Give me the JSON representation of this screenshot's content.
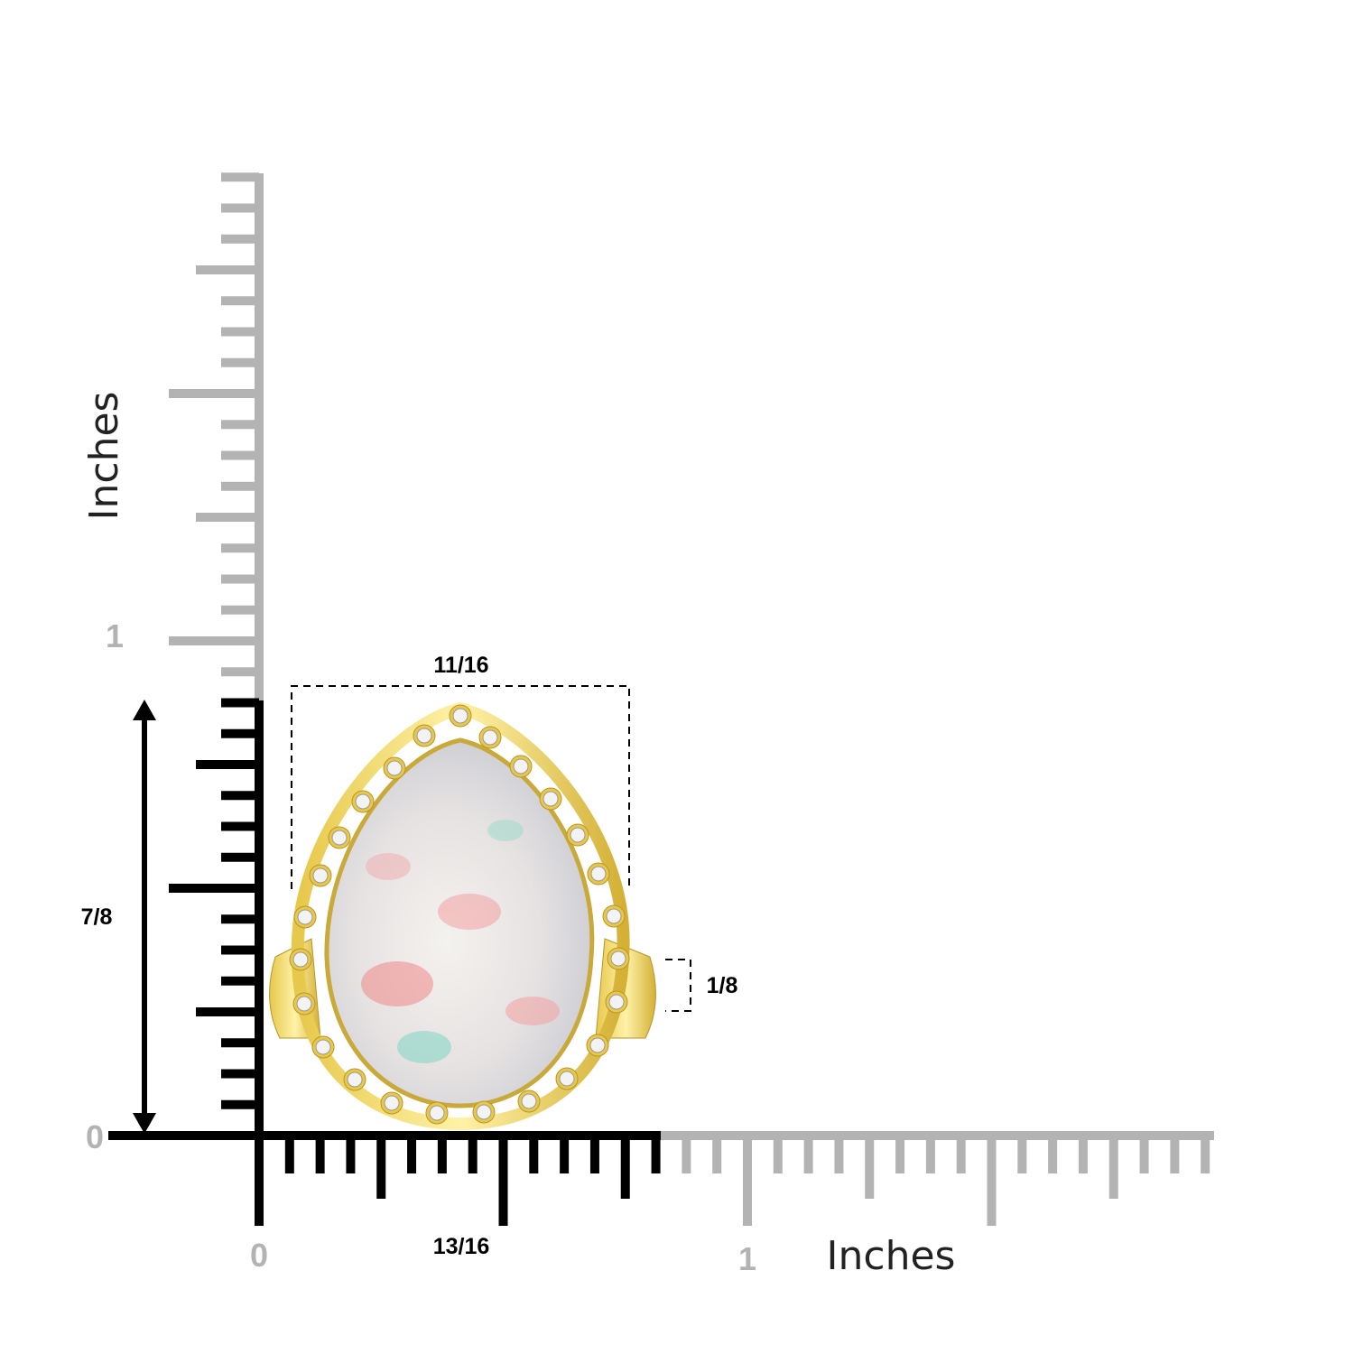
{
  "vertical_ruler": {
    "title": "Inches",
    "labels": [
      "1",
      "0"
    ]
  },
  "horizontal_ruler": {
    "title": "Inches",
    "labels": [
      "0",
      "1"
    ]
  },
  "dimensions": {
    "width": "11/16",
    "height": "7/8",
    "band_width": "1/8",
    "ring_length": "13/16"
  }
}
